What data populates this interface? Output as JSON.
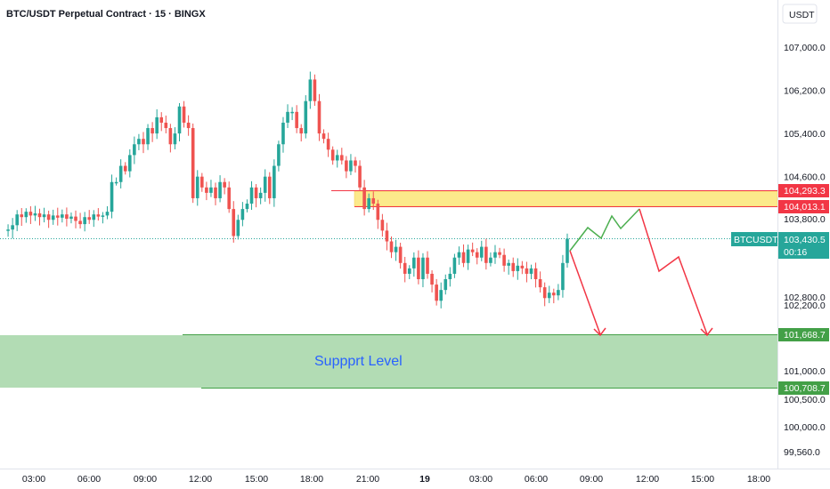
{
  "header": {
    "title": "BTC/USDT Perpetual Contract · 15 · BINGX",
    "currency": "USDT"
  },
  "colors": {
    "up": "#26a69a",
    "down": "#ef5350",
    "resistance_fill": "#fce98b",
    "support_fill": "#a5d6a7",
    "projection_up": "#4caf50",
    "projection_down": "#f23645"
  },
  "chart_data": {
    "type": "candlestick",
    "title": "BTC/USDT Perpetual Contract · 15 · BINGX",
    "ylim": [
      99400,
      107500
    ],
    "y_ticks": [
      "107,000.0",
      "106,200.0",
      "105,400.0",
      "104,600.0",
      "103,800.0",
      "102,800.0",
      "102,200.0",
      "101,000.0",
      "100,500.0",
      "100,000.0",
      "99,560.0"
    ],
    "y_tick_values": [
      107000,
      106200,
      105400,
      104600,
      103800,
      102800,
      102200,
      101000,
      100500,
      100000,
      99560
    ],
    "x_ticks": [
      "03:00",
      "06:00",
      "09:00",
      "12:00",
      "15:00",
      "18:00",
      "21:00",
      "19",
      "03:00",
      "06:00",
      "09:00",
      "12:00",
      "15:00",
      "18:00"
    ],
    "price_path": [
      103600,
      103620,
      103700,
      103900,
      103850,
      103950,
      103880,
      103920,
      103850,
      103900,
      103800,
      103880,
      103840,
      103900,
      103820,
      103860,
      103780,
      103720,
      103850,
      103800,
      103900,
      103860,
      103880,
      103950,
      104500,
      104500,
      104800,
      104700,
      105000,
      105200,
      105300,
      105200,
      105500,
      105400,
      105700,
      105600,
      105500,
      105200,
      105400,
      105900,
      105600,
      105500,
      104200,
      104600,
      104400,
      104300,
      104400,
      104200,
      104500,
      104400,
      104000,
      103500,
      103800,
      104000,
      104100,
      104400,
      104200,
      104300,
      104600,
      104200,
      104800,
      105200,
      105600,
      105800,
      105800,
      105500,
      105400,
      106000,
      106400,
      106000,
      105400,
      105300,
      105100,
      104900,
      105000,
      104900,
      104700,
      104900,
      104800,
      104400,
      104000,
      104200,
      104100,
      103800,
      103600,
      103400,
      103200,
      103300,
      103000,
      102800,
      102900,
      103100,
      102700,
      103100,
      102800,
      102600,
      102300,
      102500,
      102700,
      102800,
      103100,
      103200,
      103000,
      103250,
      103200,
      103100,
      103300,
      103000,
      103100,
      103200,
      103150,
      102950,
      103000,
      102850,
      102950,
      102900,
      102800,
      102900,
      102700,
      102550,
      102350,
      102450,
      102400,
      102500,
      103000,
      103450
    ],
    "annotations": {
      "resistance_upper": "104,293.3",
      "resistance_lower": "104,013.1",
      "current_price": "103,430.5",
      "current_symbol": "BTCUSDT.P",
      "countdown": "00:16",
      "support_upper": "101,668.7",
      "support_lower": "100,708.7",
      "support_label": "Suppprt Level"
    }
  }
}
